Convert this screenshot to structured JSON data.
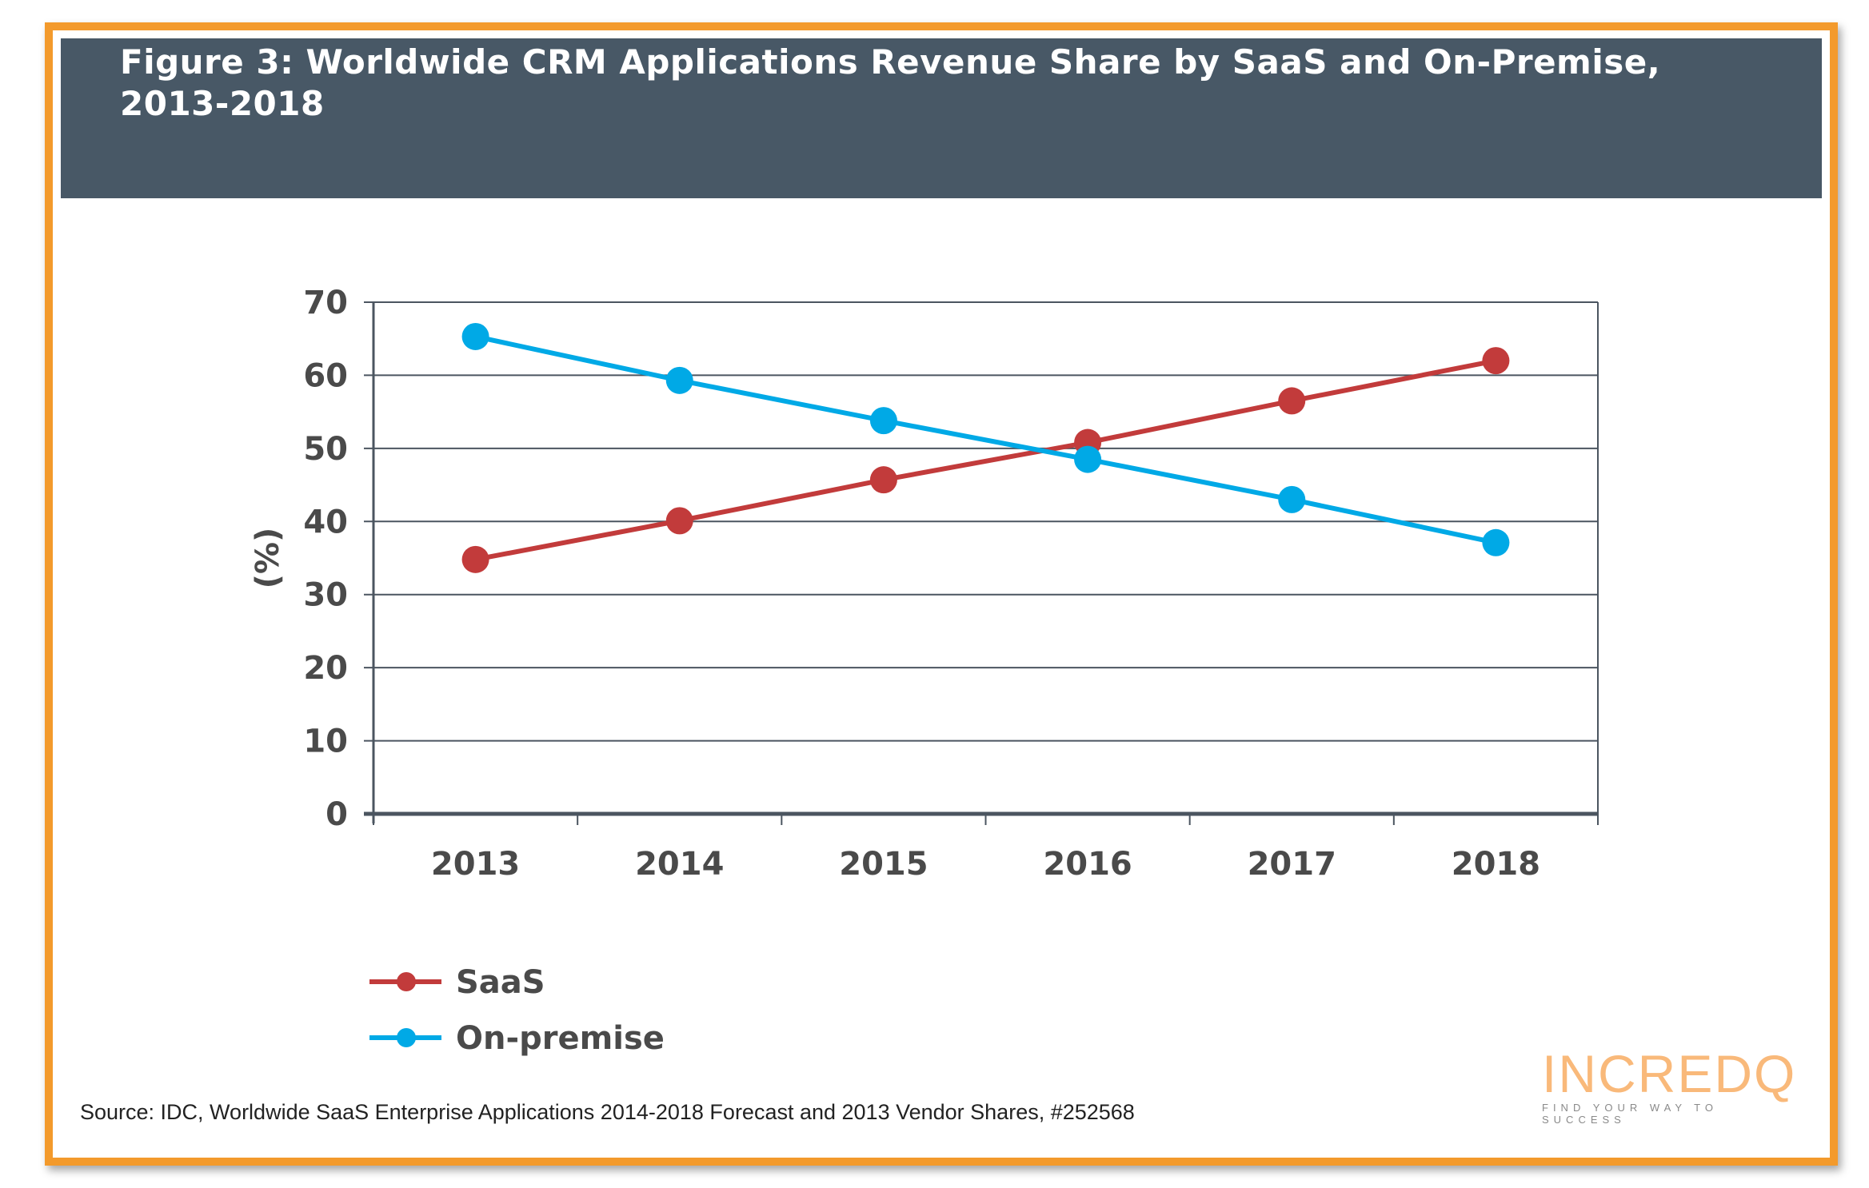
{
  "chart_data": {
    "type": "line",
    "title": "Figure 3: Worldwide CRM Applications Revenue Share by SaaS and On-Premise, 2013-2018",
    "xlabel": "",
    "ylabel": "(%)",
    "categories": [
      "2013",
      "2014",
      "2015",
      "2016",
      "2017",
      "2018"
    ],
    "ylim": [
      0,
      70
    ],
    "yticks": [
      "0",
      "10",
      "20",
      "30",
      "40",
      "50",
      "60",
      "70"
    ],
    "grid": true,
    "legend_position": "bottom-left",
    "series": [
      {
        "name": "SaaS",
        "color": "#c23b3b",
        "values": [
          34.8,
          40.1,
          45.7,
          50.8,
          56.5,
          62.0
        ]
      },
      {
        "name": "On-premise",
        "color": "#00a9e6",
        "values": [
          65.3,
          59.3,
          53.8,
          48.5,
          43.0,
          37.1
        ]
      }
    ]
  },
  "source": "Source: IDC, Worldwide SaaS Enterprise Applications 2014-2018 Forecast and 2013 Vendor Shares, #252568",
  "logo": {
    "word": "INCREDQ",
    "tagline": "FIND YOUR WAY TO SUCCESS"
  },
  "colors": {
    "frame": "#f39a2c",
    "header": "#485866",
    "axis": "#4b5560"
  }
}
